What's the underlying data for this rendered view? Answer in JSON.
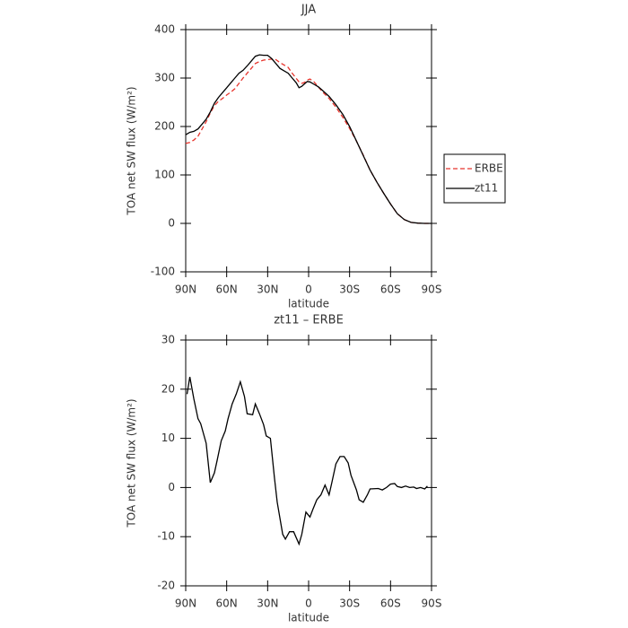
{
  "chart_data": [
    {
      "type": "line",
      "title": "JJA",
      "xlabel": "latitude",
      "ylabel": "TOA net SW flux (W/m²)",
      "x": [
        90,
        87,
        84,
        81,
        78,
        75,
        72,
        69,
        66,
        63,
        60,
        57,
        54,
        51,
        48,
        45,
        42,
        39,
        36,
        33,
        30,
        27,
        24,
        21,
        18,
        15,
        12,
        9,
        7,
        5,
        3,
        1,
        -1,
        -4,
        -7,
        -10,
        -15,
        -20,
        -25,
        -30,
        -35,
        -40,
        -45,
        -50,
        -55,
        -60,
        -65,
        -70,
        -75,
        -80,
        -85,
        -90
      ],
      "series": [
        {
          "name": "ERBE",
          "color": "#e8342c",
          "dash": true,
          "values": [
            165,
            167,
            172,
            180,
            195,
            210,
            228,
            243,
            252,
            258,
            265,
            271,
            278,
            289,
            300,
            310,
            320,
            330,
            334,
            337,
            338,
            339,
            338,
            332,
            327,
            322,
            310,
            299,
            292,
            289,
            291,
            296,
            298,
            292,
            282,
            272,
            258,
            240,
            219,
            196,
            170,
            141,
            110,
            85,
            62,
            40,
            20,
            8,
            2,
            0.5,
            0,
            0
          ]
        },
        {
          "name": "zt11",
          "color": "#000000",
          "dash": false,
          "values": [
            183,
            188,
            190,
            195,
            205,
            215,
            230,
            248,
            260,
            270,
            280,
            290,
            300,
            310,
            316,
            325,
            335,
            345,
            348,
            347,
            347,
            340,
            330,
            320,
            315,
            310,
            300,
            290,
            280,
            283,
            288,
            293,
            292,
            287,
            282,
            275,
            262,
            245,
            225,
            200,
            170,
            140,
            110,
            85,
            62,
            40,
            20,
            8,
            2,
            0.5,
            0,
            0
          ]
        }
      ],
      "xlim": [
        90,
        -90
      ],
      "xticks": [
        {
          "value": 90,
          "label": "90N"
        },
        {
          "value": 60,
          "label": "60N"
        },
        {
          "value": 30,
          "label": "30N"
        },
        0,
        {
          "value": -30,
          "label": "30S"
        },
        {
          "value": -60,
          "label": "60S"
        },
        {
          "value": -90,
          "label": "90S"
        }
      ],
      "ylim": [
        -100,
        400
      ],
      "yticks": [
        -100,
        0,
        100,
        200,
        300,
        400
      ],
      "legend": "right"
    },
    {
      "type": "line",
      "title": "zt11 – ERBE",
      "xlabel": "latitude",
      "ylabel": "TOA net SW flux (W/m²)",
      "x": [
        89,
        87,
        84,
        81,
        79,
        75,
        72,
        69,
        67,
        64,
        61,
        59,
        56,
        53,
        50,
        47,
        45,
        41,
        39,
        36,
        33,
        31,
        28,
        25,
        23,
        19,
        17,
        14,
        11,
        7,
        5,
        2,
        -1,
        -3,
        -6,
        -9,
        -12,
        -15,
        -17,
        -20,
        -23,
        -26,
        -29,
        -31,
        -35,
        -37,
        -40,
        -43,
        -45,
        -51,
        -54,
        -57,
        -60,
        -63,
        -65,
        -68,
        -71,
        -74,
        -77,
        -79,
        -82,
        -85,
        -87
      ],
      "series": [
        {
          "name": "zt11 – ERBE",
          "color": "#000000",
          "dash": false,
          "values": [
            19,
            22.5,
            18,
            14,
            13,
            9,
            1,
            3,
            5.5,
            9.5,
            11.5,
            14,
            17,
            19,
            21.5,
            18.5,
            15,
            14.8,
            17,
            15,
            12.8,
            10.5,
            10,
            2,
            -3,
            -9.5,
            -10.5,
            -9,
            -9,
            -11.5,
            -9.5,
            -5,
            -6,
            -4.5,
            -2.5,
            -1.5,
            0.5,
            -1.5,
            1,
            4.8,
            6.3,
            6.3,
            5,
            2.5,
            -0.5,
            -2.5,
            -3,
            -1.5,
            -0.3,
            -0.2,
            -0.5,
            0,
            0.7,
            0.8,
            0.2,
            0,
            0.3,
            0,
            0.1,
            -0.2,
            0,
            -0.3,
            0.3
          ]
        }
      ],
      "xlim": [
        90,
        -90
      ],
      "xticks": [
        {
          "value": 90,
          "label": "90N"
        },
        {
          "value": 60,
          "label": "60N"
        },
        {
          "value": 30,
          "label": "30N"
        },
        0,
        {
          "value": -30,
          "label": "30S"
        },
        {
          "value": -60,
          "label": "60S"
        },
        {
          "value": -90,
          "label": "90S"
        }
      ],
      "ylim": [
        -20,
        30
      ],
      "yticks": [
        -20,
        -10,
        0,
        10,
        20,
        30
      ]
    }
  ]
}
